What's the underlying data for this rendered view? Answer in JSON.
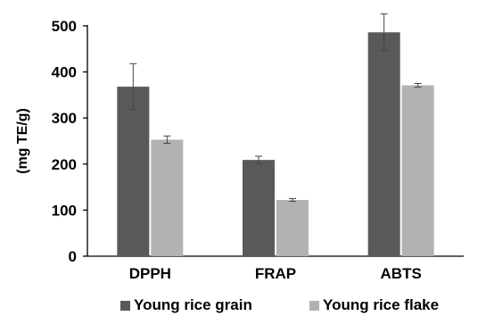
{
  "chart_data": {
    "type": "bar",
    "categories": [
      "DPPH",
      "FRAP",
      "ABTS"
    ],
    "series": [
      {
        "name": "Young rice grain",
        "color": "#595959",
        "values": [
          368,
          209,
          486
        ],
        "errors": [
          50,
          8,
          40
        ]
      },
      {
        "name": "Young rice flake",
        "color": "#b2b2b2",
        "values": [
          253,
          122,
          371
        ],
        "errors": [
          8,
          3,
          4
        ]
      }
    ],
    "ylabel": "(mg TE/g)",
    "ylim": [
      0,
      500
    ],
    "yticks": [
      0,
      100,
      200,
      300,
      400,
      500
    ],
    "grid": false,
    "legend_position": "bottom"
  }
}
